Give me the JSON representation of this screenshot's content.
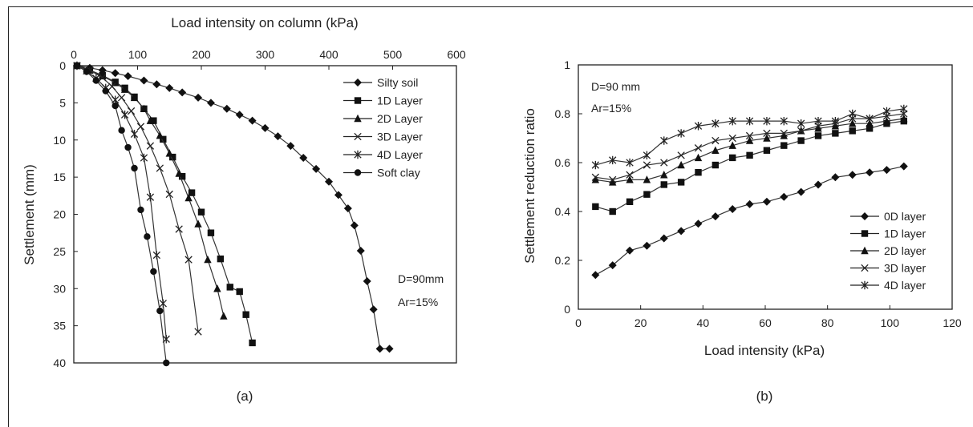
{
  "chart_data": [
    {
      "type": "line",
      "panel": "(a)",
      "xlabel": "Load intensity on column (kPa)",
      "ylabel": "Settlement (mm)",
      "xlim": [
        0,
        600
      ],
      "ylim": [
        0,
        40
      ],
      "x_axis_position": "top",
      "y_inverted": true,
      "xticks": [
        0,
        100,
        200,
        300,
        400,
        500,
        600
      ],
      "yticks": [
        0,
        5,
        10,
        15,
        20,
        25,
        30,
        35,
        40
      ],
      "legend_position": "top-right",
      "annotations": [
        "D=90mm",
        "Ar=15%"
      ],
      "series": [
        {
          "name": "Silty soil",
          "marker": "diamond",
          "x": [
            5,
            25,
            45,
            65,
            85,
            110,
            130,
            150,
            170,
            195,
            215,
            240,
            260,
            280,
            300,
            320,
            340,
            360,
            380,
            400,
            415,
            430,
            440,
            450,
            460,
            470,
            480,
            495
          ],
          "y": [
            0,
            0.3,
            0.6,
            1.0,
            1.4,
            2.0,
            2.5,
            3.0,
            3.6,
            4.3,
            5.0,
            5.8,
            6.6,
            7.4,
            8.4,
            9.5,
            10.8,
            12.4,
            13.9,
            15.6,
            17.4,
            19.2,
            21.5,
            24.9,
            29.0,
            32.8,
            38.1,
            38.1
          ]
        },
        {
          "name": "1D Layer",
          "marker": "square",
          "x": [
            5,
            25,
            45,
            65,
            80,
            95,
            110,
            125,
            140,
            155,
            170,
            185,
            200,
            215,
            230,
            245,
            260,
            270,
            280
          ],
          "y": [
            0,
            0.6,
            1.3,
            2.2,
            3.0,
            4.2,
            5.8,
            7.4,
            9.9,
            12.3,
            14.9,
            17.1,
            19.7,
            22.5,
            26.0,
            29.8,
            30.4,
            33.5,
            37.3
          ]
        },
        {
          "name": "2D Layer",
          "marker": "triangle",
          "x": [
            5,
            25,
            45,
            65,
            80,
            95,
            110,
            120,
            135,
            150,
            165,
            180,
            195,
            210,
            225,
            235
          ],
          "y": [
            0,
            0.6,
            1.4,
            2.3,
            3.2,
            4.3,
            5.8,
            7.4,
            9.4,
            11.8,
            14.5,
            17.8,
            21.3,
            26.1,
            30.0,
            33.7
          ]
        },
        {
          "name": "3D Layer",
          "marker": "x",
          "x": [
            5,
            25,
            45,
            60,
            75,
            90,
            105,
            120,
            135,
            150,
            165,
            180,
            195
          ],
          "y": [
            0,
            0.6,
            1.6,
            2.8,
            4.3,
            6.1,
            8.2,
            10.8,
            13.8,
            17.3,
            22.0,
            26.1,
            35.8
          ]
        },
        {
          "name": "4D Layer",
          "marker": "asterisk",
          "x": [
            5,
            20,
            35,
            50,
            65,
            80,
            95,
            110,
            120,
            130,
            140,
            145
          ],
          "y": [
            0,
            0.7,
            1.7,
            3.0,
            4.6,
            6.6,
            9.2,
            12.4,
            17.7,
            25.5,
            32.0,
            36.8
          ]
        },
        {
          "name": "Soft clay",
          "marker": "circle",
          "x": [
            5,
            20,
            35,
            50,
            65,
            75,
            85,
            95,
            105,
            115,
            125,
            135,
            145
          ],
          "y": [
            0,
            0.8,
            2.0,
            3.4,
            5.4,
            8.7,
            11.0,
            13.8,
            19.4,
            23.0,
            27.7,
            33.0,
            40.0
          ]
        }
      ]
    },
    {
      "type": "line",
      "panel": "(b)",
      "xlabel": "Load intensity (kPa)",
      "ylabel": "Settlement reduction ratio",
      "xlim": [
        0,
        120
      ],
      "ylim": [
        0,
        1
      ],
      "xticks": [
        0,
        20,
        40,
        60,
        80,
        100,
        120
      ],
      "yticks": [
        0,
        0.2,
        0.4,
        0.6,
        0.8,
        1
      ],
      "legend_position": "bottom-right",
      "annotations": [
        "D=90 mm",
        "Ar=15%"
      ],
      "series": [
        {
          "name": "0D layer",
          "marker": "diamond",
          "x": [
            5.5,
            11,
            16.5,
            22,
            27.5,
            33,
            38.5,
            44,
            49.5,
            55,
            60.5,
            66,
            71.5,
            77,
            82.5,
            88,
            93.5,
            99,
            104.5
          ],
          "y": [
            0.14,
            0.18,
            0.24,
            0.26,
            0.29,
            0.32,
            0.35,
            0.38,
            0.41,
            0.43,
            0.44,
            0.46,
            0.48,
            0.51,
            0.54,
            0.55,
            0.56,
            0.57,
            0.585
          ]
        },
        {
          "name": "1D layer",
          "marker": "square",
          "x": [
            5.5,
            11,
            16.5,
            22,
            27.5,
            33,
            38.5,
            44,
            49.5,
            55,
            60.5,
            66,
            71.5,
            77,
            82.5,
            88,
            93.5,
            99,
            104.5
          ],
          "y": [
            0.42,
            0.4,
            0.44,
            0.47,
            0.51,
            0.52,
            0.56,
            0.59,
            0.62,
            0.63,
            0.65,
            0.67,
            0.69,
            0.71,
            0.72,
            0.73,
            0.74,
            0.76,
            0.77
          ]
        },
        {
          "name": "2D layer",
          "marker": "triangle",
          "x": [
            5.5,
            11,
            16.5,
            22,
            27.5,
            33,
            38.5,
            44,
            49.5,
            55,
            60.5,
            66,
            71.5,
            77,
            82.5,
            88,
            93.5,
            99,
            104.5
          ],
          "y": [
            0.53,
            0.52,
            0.53,
            0.53,
            0.55,
            0.59,
            0.62,
            0.65,
            0.67,
            0.69,
            0.7,
            0.71,
            0.73,
            0.74,
            0.75,
            0.76,
            0.76,
            0.77,
            0.78
          ]
        },
        {
          "name": "3D layer",
          "marker": "x",
          "x": [
            5.5,
            11,
            16.5,
            22,
            27.5,
            33,
            38.5,
            44,
            49.5,
            55,
            60.5,
            66,
            71.5,
            77,
            82.5,
            88,
            93.5,
            99,
            104.5
          ],
          "y": [
            0.54,
            0.53,
            0.55,
            0.59,
            0.6,
            0.63,
            0.66,
            0.69,
            0.7,
            0.71,
            0.72,
            0.72,
            0.73,
            0.75,
            0.76,
            0.78,
            0.78,
            0.79,
            0.8
          ]
        },
        {
          "name": "4D layer",
          "marker": "asterisk",
          "x": [
            5.5,
            11,
            16.5,
            22,
            27.5,
            33,
            38.5,
            44,
            49.5,
            55,
            60.5,
            66,
            71.5,
            77,
            82.5,
            88,
            93.5,
            99,
            104.5
          ],
          "y": [
            0.59,
            0.61,
            0.6,
            0.63,
            0.69,
            0.72,
            0.75,
            0.76,
            0.77,
            0.77,
            0.77,
            0.77,
            0.76,
            0.77,
            0.77,
            0.8,
            0.78,
            0.81,
            0.82
          ]
        }
      ]
    }
  ]
}
